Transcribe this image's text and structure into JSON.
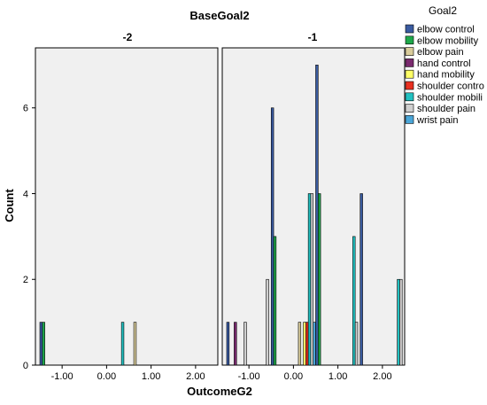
{
  "chart_data": {
    "type": "bar",
    "title": "BaseGoal2",
    "xlabel": "OutcomeG2",
    "ylabel": "Count",
    "ylim": [
      0,
      7.4
    ],
    "y_ticks": [
      0,
      2,
      4,
      6
    ],
    "x_ticks": [
      -1.0,
      0.0,
      1.0,
      2.0
    ],
    "x_tick_labels": [
      "-1.00",
      "0.00",
      "1.00",
      "2.00"
    ],
    "xlim": [
      -1.6,
      2.5
    ],
    "legend_placement": "right",
    "legend_title": "Goal2",
    "series": [
      {
        "name": "elbow control",
        "color": "#3a5ba0"
      },
      {
        "name": "elbow mobility",
        "color": "#1ea84a"
      },
      {
        "name": "elbow pain",
        "color": "#d9cc9b"
      },
      {
        "name": "hand control",
        "color": "#7a2a6e"
      },
      {
        "name": "hand mobility",
        "color": "#ffff66"
      },
      {
        "name": "shoulder contro",
        "color": "#e83020"
      },
      {
        "name": "shoulder mobili",
        "color": "#22c1c1"
      },
      {
        "name": "shoulder pain",
        "color": "#cfcfcf"
      },
      {
        "name": "wrist pain",
        "color": "#4aa6d8"
      }
    ],
    "panels": [
      {
        "label": "-2",
        "bars": [
          {
            "x": -1.25,
            "series": 0,
            "value": 1
          },
          {
            "x": -1.25,
            "series": 1,
            "value": 1
          },
          {
            "x": 0.25,
            "series": 6,
            "value": 1
          },
          {
            "x": 0.75,
            "series": 2,
            "value": 1
          }
        ]
      },
      {
        "label": "-1",
        "bars": [
          {
            "x": -1.25,
            "series": 0,
            "value": 1
          },
          {
            "x": -1.25,
            "series": 3,
            "value": 1
          },
          {
            "x": -1.25,
            "series": 7,
            "value": 1
          },
          {
            "x": -0.75,
            "series": 7,
            "value": 2
          },
          {
            "x": -0.25,
            "series": 0,
            "value": 6
          },
          {
            "x": -0.25,
            "series": 1,
            "value": 3
          },
          {
            "x": 0.25,
            "series": 2,
            "value": 1
          },
          {
            "x": 0.25,
            "series": 4,
            "value": 1
          },
          {
            "x": 0.25,
            "series": 5,
            "value": 1
          },
          {
            "x": 0.25,
            "series": 6,
            "value": 4
          },
          {
            "x": 0.25,
            "series": 7,
            "value": 4
          },
          {
            "x": 0.25,
            "series": 8,
            "value": 1
          },
          {
            "x": 0.75,
            "series": 0,
            "value": 7
          },
          {
            "x": 0.75,
            "series": 1,
            "value": 4
          },
          {
            "x": 1.25,
            "series": 6,
            "value": 3
          },
          {
            "x": 1.25,
            "series": 7,
            "value": 1
          },
          {
            "x": 1.75,
            "series": 0,
            "value": 4
          },
          {
            "x": 2.25,
            "series": 6,
            "value": 2
          },
          {
            "x": 2.25,
            "series": 7,
            "value": 2
          }
        ]
      }
    ]
  }
}
